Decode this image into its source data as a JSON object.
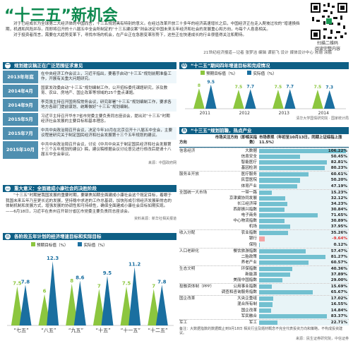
{
  "header": {
    "title": "“十三五”新机会",
    "intro": "对于已经成长为全球第二大经济体的中国而言，十三五规划具有特别的意义。在经过改革开放三十多年的经济高速增长之后，中国经济正在走入爬坡过坎的“增速换挡期，机遇和风险并存。而即将召开的十八届五中全会所制定的“十三五建议案”则会决定中国未来五年经济和社会的发展重心和方向，与每个人息息相关。",
    "intro2": "对于投资者而言，需要在大趋势变革下，寻找市场的机会，在产业正在急剧变革形势下，这些正在快速成长的行业很值得关注和期待。",
    "byline": "21世纪经济报道—记者 张梦洁 编辑 谭丽飞 设计 媒体设计中心 陈珊 涂鹏",
    "qr_caption": "扫描二维码\n阅读完整内容"
  },
  "sec1": {
    "num": "一",
    "title": "规划建议稿正在广泛范围征求意见",
    "rows": [
      {
        "date": "2013年年底",
        "text": "在中央经济工作会议上，习近平指出，要着手启动“十三五”规划前期准备工作，开展有关重大问题研究。"
      },
      {
        "date": "2014年4月",
        "text": "国家发改委启动“十三五”规划编制工作，公开招标委托课题研究，涉及教育、农业、房地产、国企改革等领域的25个重点课题。"
      },
      {
        "date": "2014年9月",
        "text": "李克强主持召开国务院常务会议，研究部署“十三五”规划编制工作，要求各地方各部门提前谋划、统筹做好“十三五”规划编制。"
      },
      {
        "date": "2015年5月",
        "text": "习近平主持召开华东7省市党委主要负责同志座谈会，提出对“十三五”时期经济社会发展的主要目标和基本理念。"
      },
      {
        "date": "2015年7月",
        "text": "中共中央政治局召开会议，决定今年10月在北京召开十八届五中全会，主要议程是研究关于制定国民经济和社会发展第十三个五年规划的建议。"
      },
      {
        "date": "2015年10月",
        "text": "中共中央政治局召开会议，讨论《中共中央关于制定国民经济和社会发展第十三个五年规划的建议》稿，建议稿根据会议讨论意见进行修改后提请十八届五中全会审议。"
      }
    ],
    "source": "来源：中国政府网"
  },
  "sec2": {
    "num": "二",
    "title": "重大意义：全面建成小康社会的决胜阶段",
    "text": "“十三五”时期是我国发展的重要时期，要聚焦如期全面建成小康社会这个既定目标，着眼于我国未来五年乃至更长远的发展，坚持稳中求进的工作总基调，加快形成引领经济发展新常态的体制机制和发展方式，增强发展的协调性和可持续性，确保全面建成小康社会目标如期实现。——6月18日，习近平在贵州召开部分省区市党委主要负责同志座谈会。",
    "source": "资料来源：新华社相关报道"
  },
  "sec3": {
    "num": "三",
    "title": "各阶段五年计划的经济增速目标和实际目标",
    "legend_target": "预期目标值（%）",
    "legend_actual": "实际值（%）",
    "chart_data": {
      "type": "bar",
      "categories": [
        "七五",
        "八五",
        "九五",
        "十五",
        "十一五",
        "十二五"
      ],
      "series": [
        {
          "name": "预期目标值（%）",
          "values": [
            7.5,
            6,
            8,
            7,
            7.5,
            7
          ]
        },
        {
          "name": "实际值（%）",
          "values": [
            7.8,
            12.3,
            8.6,
            9.5,
            11.2,
            7.8
          ]
        }
      ],
      "ylim": [
        0,
        13
      ]
    }
  },
  "sec4": {
    "num": "四",
    "title": "“十二五”期间四年增速目标和完成情况",
    "legend_target": "预期目标值（%）",
    "legend_actual": "实际值（%）",
    "chart_data": {
      "type": "bar",
      "categories": [
        "2011",
        "2012",
        "2013",
        "2014"
      ],
      "series": [
        {
          "name": "预期目标值（%）",
          "values": [
            8,
            7.5,
            7.5,
            7.5
          ]
        },
        {
          "name": "实际值（%）",
          "values": [
            9.5,
            7.7,
            7.7,
            7.3
          ]
        }
      ],
      "ylim": [
        0,
        10
      ]
    },
    "source": "清华大学国情研究院 · 国家统计局"
  },
  "sec5": {
    "num": "五",
    "title": "“十三五”规划前瞻，热点产业",
    "col_direction": "方向",
    "col_index": "市场关注方向（即相关指数）",
    "col_change": "市场表现（年初至10月13日，同期上证综指上涨11.5%）",
    "rows": [
      {
        "cat": "信息经济",
        "ind": "大数据",
        "val": "106.22%",
        "pct": 106.22
      },
      {
        "cat": "",
        "ind": "信息安全",
        "val": "50.45%",
        "pct": 50.45
      },
      {
        "cat": "",
        "ind": "智能医疗",
        "val": "82.81%",
        "pct": 82.81
      },
      {
        "cat": "",
        "ind": "基因检测",
        "val": "80.23%",
        "pct": 80.23
      },
      {
        "cat": "服务业开放",
        "ind": "医疗服务",
        "val": "60.61%",
        "pct": 60.61
      },
      {
        "cat": "",
        "ind": "民营医院",
        "val": "50.20%",
        "pct": 50.2
      },
      {
        "cat": "",
        "ind": "体育产业",
        "val": "47.19%",
        "pct": 47.19
      },
      {
        "cat": "全国统一大市场",
        "ind": "一带一路",
        "val": "15.23%",
        "pct": 15.23
      },
      {
        "cat": "",
        "ind": "京津冀协同发展",
        "val": "32.12%",
        "pct": 32.12
      },
      {
        "cat": "",
        "ind": "长江经济带",
        "val": "34.23%",
        "pct": 34.23
      },
      {
        "cat": "",
        "ind": "西部振兴指数",
        "val": "30.84%",
        "pct": 30.84
      },
      {
        "cat": "",
        "ind": "电子商务",
        "val": "71.65%",
        "pct": 71.65
      },
      {
        "cat": "",
        "ind": "中心物流指数",
        "val": "30.89%",
        "pct": 30.89
      },
      {
        "cat": "",
        "ind": "机场",
        "val": "37.95%",
        "pct": 37.95
      },
      {
        "cat": "收入分配",
        "ind": "农业指数",
        "val": "35.26%",
        "pct": 35.26
      },
      {
        "cat": "",
        "ind": "银行",
        "val": "-9.64%",
        "pct": -9.64
      },
      {
        "cat": "",
        "ind": "保险",
        "val": "0.12%",
        "pct": 0.12
      },
      {
        "cat": "人口老龄化",
        "ind": "餐饮旅游指数",
        "val": "57.47%",
        "pct": 57.47
      },
      {
        "cat": "",
        "ind": "二胎政策",
        "val": "81.27%",
        "pct": 81.27
      },
      {
        "cat": "",
        "ind": "养老产业",
        "val": "60.57%",
        "pct": 60.57
      },
      {
        "cat": "生态文明",
        "ind": "环保指数",
        "val": "40.36%",
        "pct": 40.36
      },
      {
        "cat": "",
        "ind": "新能源",
        "val": "37.89%",
        "pct": 37.89
      },
      {
        "cat": "",
        "ind": "美丽中国指数",
        "val": "29.00%",
        "pct": 29.0
      },
      {
        "cat": "投融资体制（PPP）",
        "ind": "公用事业指数",
        "val": "15.69%",
        "pct": 15.69
      },
      {
        "cat": "",
        "ind": "调查和咨询服务指数",
        "val": "65.67%",
        "pct": 65.67
      },
      {
        "cat": "国企改革",
        "ind": "大央企重组",
        "val": "17.02%",
        "pct": 17.02
      },
      {
        "cat": "",
        "ind": "混合所有制",
        "val": "16.55%",
        "pct": 16.55
      },
      {
        "cat": "",
        "ind": "国企改革",
        "val": "14.84%",
        "pct": 14.84
      },
      {
        "cat": "",
        "ind": "军民融合",
        "val": "83.37%",
        "pct": 83.37
      },
      {
        "cat": "军工",
        "ind": "军工",
        "val": "22.71%",
        "pct": 22.71
      }
    ],
    "note": "备注：大数据指数的数据截止到9月18日 相关行业及题材概念不完全代表投资方向和策略，不构成投资建议。",
    "source": "来源：民生证券研究院，中信证券"
  }
}
